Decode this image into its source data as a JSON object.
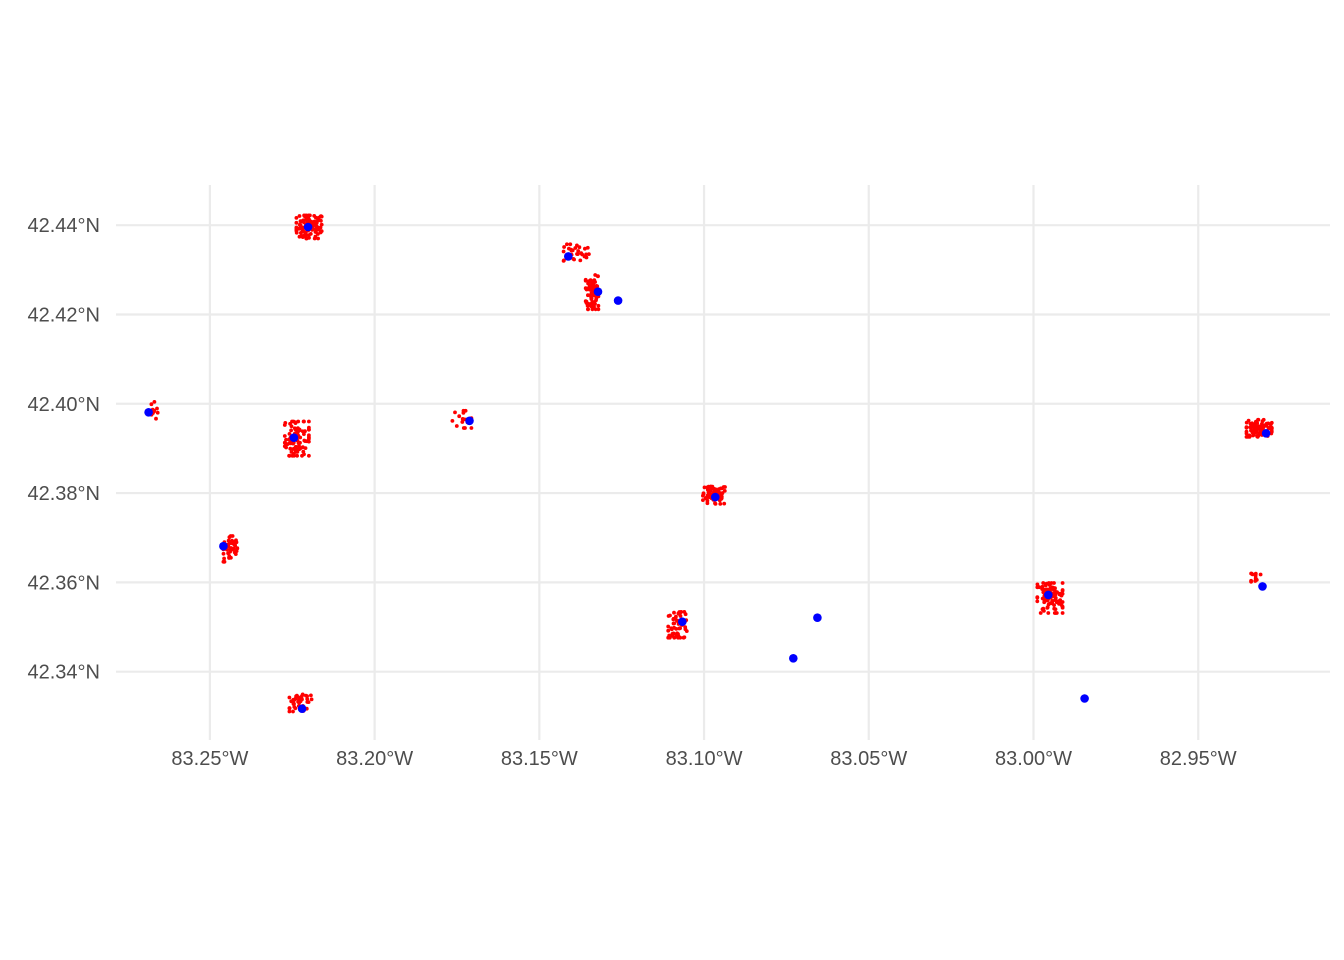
{
  "chart_data": {
    "type": "scatter",
    "title": "",
    "xlabel": "",
    "ylabel": "",
    "xlim": [
      -83.2785,
      -82.91
    ],
    "ylim": [
      42.3247,
      42.449
    ],
    "grid": true,
    "colors": {
      "red": "#ff0000",
      "blue": "#0000ff",
      "grid": "#ebebeb",
      "text": "#4d4d4d"
    },
    "x_ticks": [
      {
        "value": -83.25,
        "label": "83.25°W"
      },
      {
        "value": -83.2,
        "label": "83.20°W"
      },
      {
        "value": -83.15,
        "label": "83.15°W"
      },
      {
        "value": -83.1,
        "label": "83.10°W"
      },
      {
        "value": -83.05,
        "label": "83.05°W"
      },
      {
        "value": -83.0,
        "label": "83.00°W"
      },
      {
        "value": -82.95,
        "label": "82.95°W"
      }
    ],
    "y_ticks": [
      {
        "value": 42.44,
        "label": "42.44°N"
      },
      {
        "value": 42.42,
        "label": "42.42°N"
      },
      {
        "value": 42.4,
        "label": "42.40°N"
      },
      {
        "value": 42.38,
        "label": "42.38°N"
      },
      {
        "value": 42.36,
        "label": "42.36°N"
      },
      {
        "value": 42.34,
        "label": "42.34°N"
      }
    ],
    "series": [
      {
        "color": "#ff0000",
        "marker_size": "small",
        "clusters": [
          {
            "lon": -83.2199,
            "lat": 42.4396,
            "spread_lon": 0.004,
            "spread_lat": 0.0027,
            "count": 90
          },
          {
            "lon": -83.1388,
            "lat": 42.4338,
            "spread_lon": 0.004,
            "spread_lat": 0.002,
            "count": 30
          },
          {
            "lon": -83.134,
            "lat": 42.425,
            "spread_lon": 0.002,
            "spread_lat": 0.004,
            "count": 80
          },
          {
            "lon": -83.2668,
            "lat": 42.3985,
            "spread_lon": 0.001,
            "spread_lat": 0.002,
            "count": 10
          },
          {
            "lon": -83.2236,
            "lat": 42.3922,
            "spread_lon": 0.0038,
            "spread_lat": 0.004,
            "count": 90
          },
          {
            "lon": -83.1735,
            "lat": 42.3965,
            "spread_lon": 0.003,
            "spread_lat": 0.002,
            "count": 18
          },
          {
            "lon": -83.2435,
            "lat": 42.3675,
            "spread_lon": 0.0025,
            "spread_lat": 0.003,
            "count": 40
          },
          {
            "lon": -83.097,
            "lat": 42.3795,
            "spread_lon": 0.0035,
            "spread_lat": 0.002,
            "count": 70
          },
          {
            "lon": -83.2225,
            "lat": 42.333,
            "spread_lon": 0.0035,
            "spread_lat": 0.002,
            "count": 40
          },
          {
            "lon": -83.108,
            "lat": 42.3505,
            "spread_lon": 0.003,
            "spread_lat": 0.003,
            "count": 55
          },
          {
            "lon": -82.995,
            "lat": 42.3565,
            "spread_lon": 0.004,
            "spread_lat": 0.0035,
            "count": 95
          },
          {
            "lon": -82.9315,
            "lat": 42.3945,
            "spread_lon": 0.004,
            "spread_lat": 0.002,
            "count": 90
          },
          {
            "lon": -82.9325,
            "lat": 42.3612,
            "spread_lon": 0.0015,
            "spread_lat": 0.0012,
            "count": 12
          }
        ]
      },
      {
        "color": "#0000ff",
        "marker_size": "medium",
        "points": [
          {
            "lon": -83.2202,
            "lat": 42.4396
          },
          {
            "lon": -83.1412,
            "lat": 42.433
          },
          {
            "lon": -83.1322,
            "lat": 42.4251
          },
          {
            "lon": -83.1261,
            "lat": 42.4231
          },
          {
            "lon": -83.2686,
            "lat": 42.3981
          },
          {
            "lon": -83.2245,
            "lat": 42.3924
          },
          {
            "lon": -83.1712,
            "lat": 42.3962
          },
          {
            "lon": -83.2459,
            "lat": 42.3681
          },
          {
            "lon": -83.0966,
            "lat": 42.3791
          },
          {
            "lon": -83.222,
            "lat": 42.3317
          },
          {
            "lon": -83.1066,
            "lat": 42.3512
          },
          {
            "lon": -83.0656,
            "lat": 42.3521
          },
          {
            "lon": -83.0729,
            "lat": 42.343
          },
          {
            "lon": -82.9845,
            "lat": 42.334
          },
          {
            "lon": -82.9955,
            "lat": 42.3572
          },
          {
            "lon": -82.9294,
            "lat": 42.3934
          },
          {
            "lon": -82.9305,
            "lat": 42.3591
          }
        ]
      }
    ]
  }
}
